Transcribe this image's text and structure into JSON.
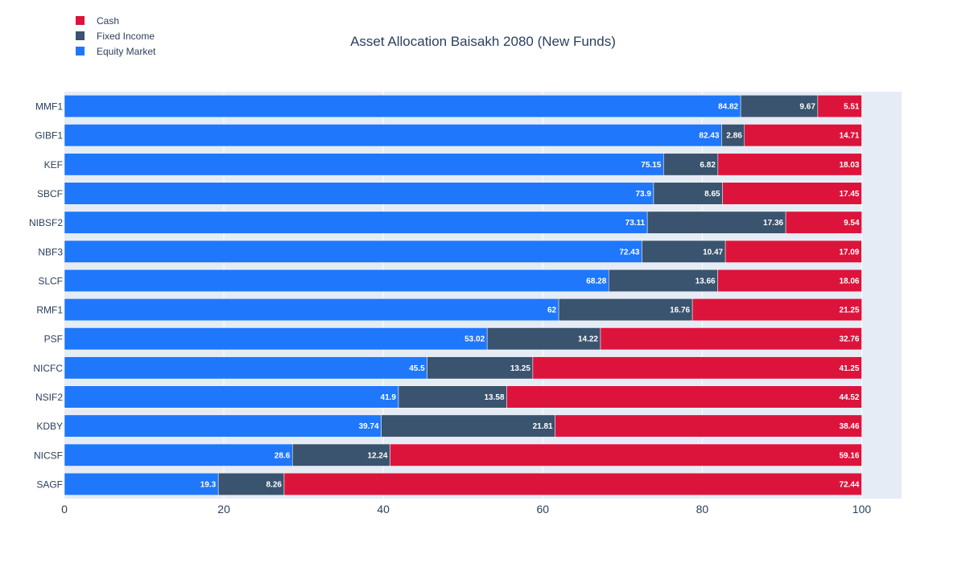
{
  "chart_data": {
    "type": "bar",
    "orientation": "horizontal",
    "stacked": true,
    "title": "Asset Allocation Baisakh 2080 (New Funds)",
    "xlabel": "",
    "ylabel": "",
    "xlim": [
      0,
      105
    ],
    "x_ticks": [
      0,
      20,
      40,
      60,
      80,
      100
    ],
    "grid": true,
    "legend_position": "top-left",
    "categories": [
      "MMF1",
      "GIBF1",
      "KEF",
      "SBCF",
      "NIBSF2",
      "NBF3",
      "SLCF",
      "RMF1",
      "PSF",
      "NICFC",
      "NSIF2",
      "KDBY",
      "NICSF",
      "SAGF"
    ],
    "series": [
      {
        "name": "Equity Market",
        "color": "#1f77fb",
        "values": [
          84.82,
          82.43,
          75.15,
          73.9,
          73.11,
          72.43,
          68.28,
          62,
          53.02,
          45.5,
          41.9,
          39.74,
          28.6,
          19.3
        ]
      },
      {
        "name": "Fixed Income",
        "color": "#3a536e",
        "values": [
          9.67,
          2.86,
          6.82,
          8.65,
          17.36,
          10.47,
          13.66,
          16.76,
          14.22,
          13.25,
          13.58,
          21.81,
          12.24,
          8.26
        ]
      },
      {
        "name": "Cash",
        "color": "#dc143c",
        "values": [
          5.51,
          14.71,
          18.03,
          17.45,
          9.54,
          17.09,
          18.06,
          21.25,
          32.76,
          41.25,
          44.52,
          38.46,
          59.16,
          72.44
        ]
      }
    ],
    "legend_order": [
      "Cash",
      "Fixed Income",
      "Equity Market"
    ]
  }
}
